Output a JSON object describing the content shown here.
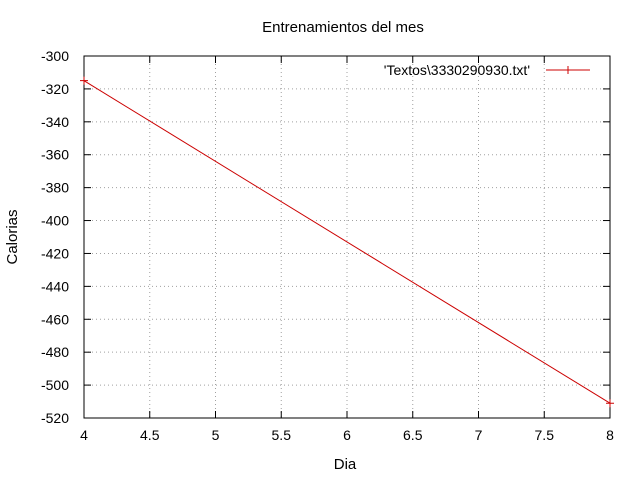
{
  "chart_data": {
    "type": "line",
    "title": "Entrenamientos del mes",
    "xlabel": "Dia",
    "ylabel": "Calorias",
    "xlim": [
      4,
      8
    ],
    "ylim": [
      -520,
      -300
    ],
    "x_ticks": [
      "4",
      "4.5",
      "5",
      "5.5",
      "6",
      "6.5",
      "7",
      "7.5",
      "8"
    ],
    "y_ticks": [
      "-300",
      "-320",
      "-340",
      "-360",
      "-380",
      "-400",
      "-420",
      "-440",
      "-460",
      "-480",
      "-500",
      "-520"
    ],
    "grid": true,
    "legend_position": "top-right",
    "series": [
      {
        "name": "'Textos\\3330290930.txt'",
        "color": "#cc0000",
        "marker": "plus",
        "x": [
          4,
          8
        ],
        "y": [
          -315,
          -511
        ]
      }
    ]
  }
}
